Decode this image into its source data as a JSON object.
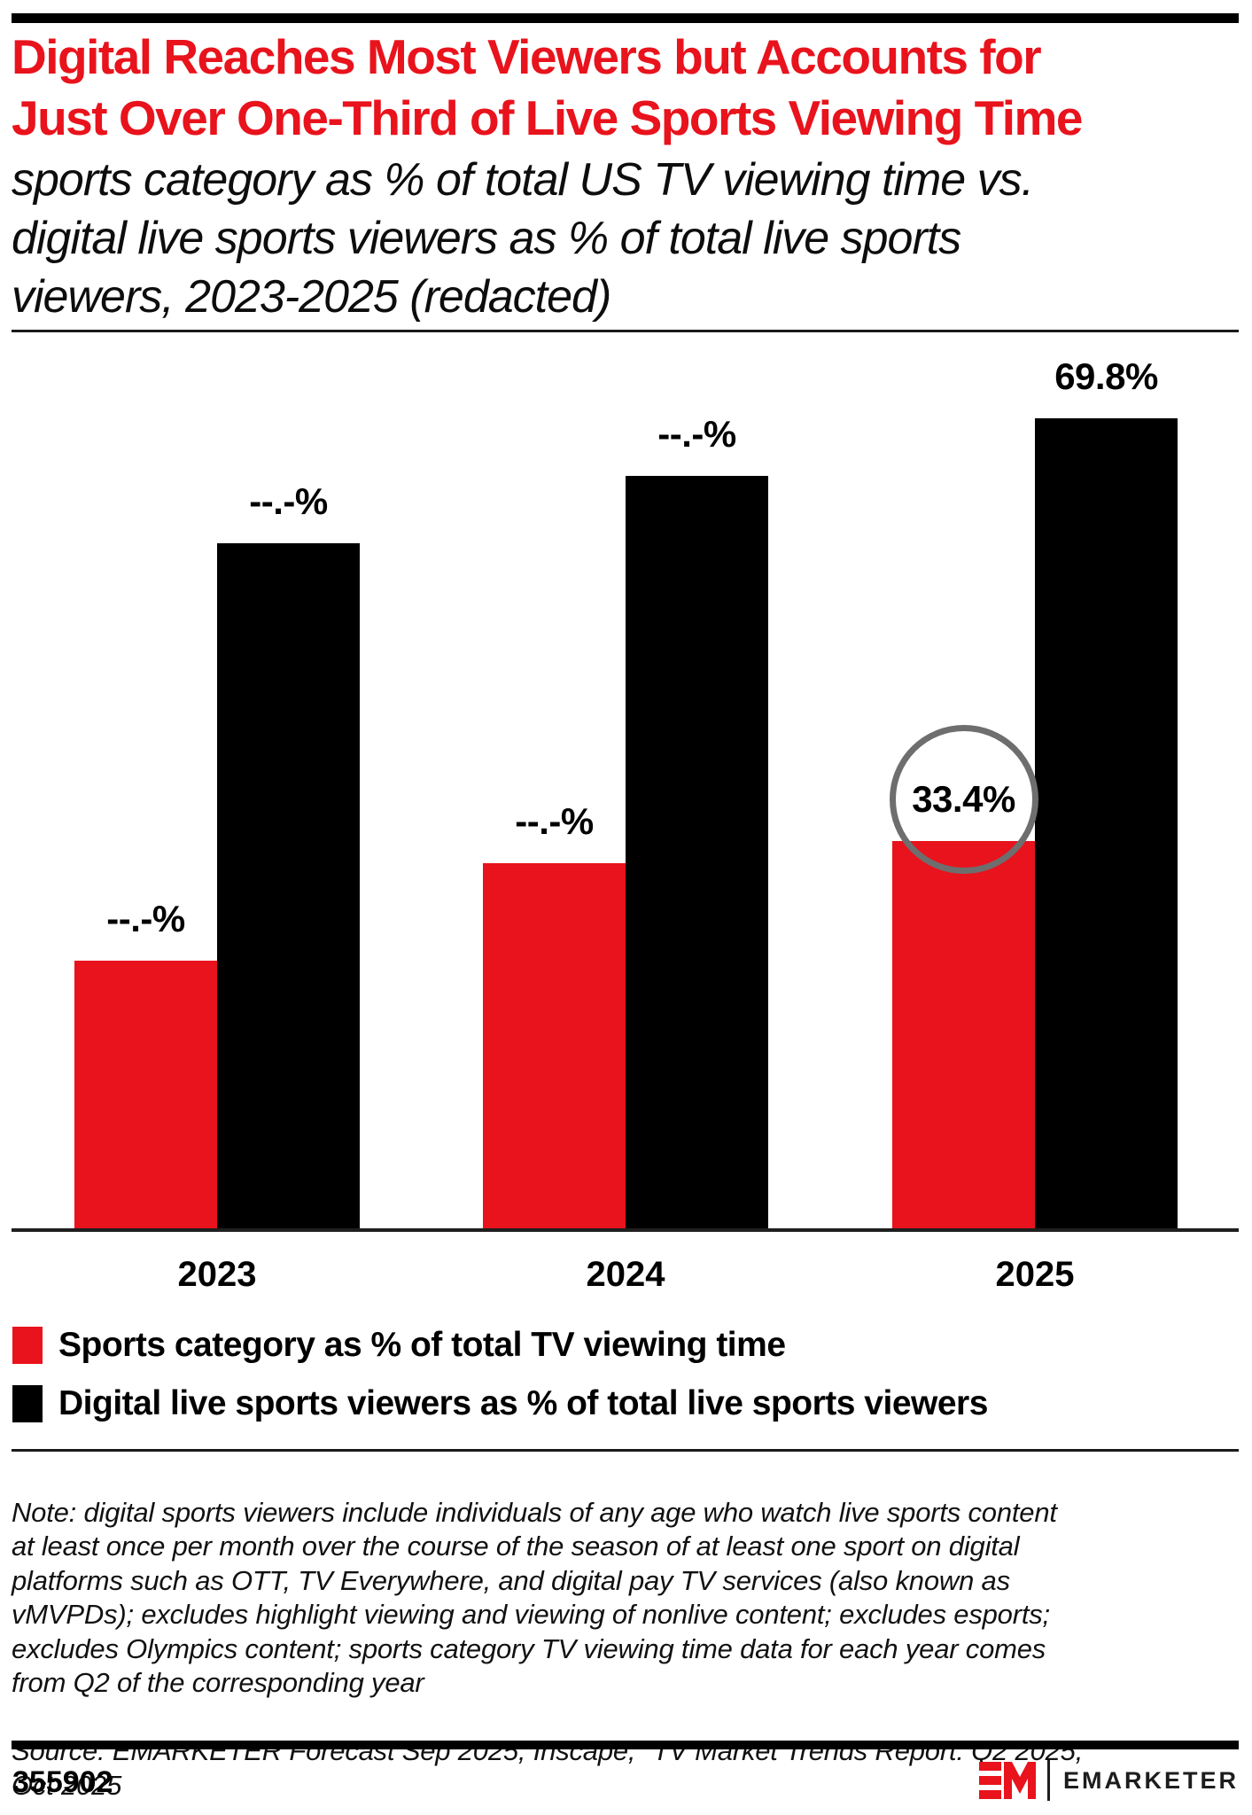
{
  "header": {
    "title": "Digital Reaches Most Viewers but Accounts for\nJust Over One-Third of Live Sports Viewing Time",
    "subtitle": "sports category as % of total US TV viewing time vs.\ndigital live sports viewers as % of total live sports\nviewers, 2023-2025 (redacted)"
  },
  "colors": {
    "brand_red": "#e8131c",
    "bar_black": "#000000",
    "circle_gray": "#6e6e6e",
    "rule_dark": "#1a1a1a"
  },
  "chart_data": {
    "type": "bar",
    "title": "Digital Reaches Most Viewers but Accounts for Just Over One-Third of Live Sports Viewing Time",
    "categories": [
      "2023",
      "2024",
      "2025"
    ],
    "series": [
      {
        "name": "Sports category as % of total TV viewing time",
        "color": "#e8131c",
        "values": [
          null,
          null,
          33.4
        ],
        "value_labels": [
          "--.-%",
          "--.-%",
          "33.4%"
        ],
        "estimated_values": [
          23.1,
          31.5,
          33.4
        ],
        "redacted": [
          true,
          true,
          false
        ]
      },
      {
        "name": "Digital live sports viewers as % of total live sports viewers",
        "color": "#000000",
        "values": [
          null,
          null,
          69.8
        ],
        "value_labels": [
          "--.-%",
          "--.-%",
          "69.8%"
        ],
        "estimated_values": [
          59.0,
          64.8,
          69.8
        ],
        "redacted": [
          true,
          true,
          false
        ]
      }
    ],
    "ylim": [
      0,
      75.6
    ],
    "grid": false,
    "y_axis_visible": false,
    "value_labels_shown": true,
    "legend_position": "bottom",
    "annotation": {
      "shape": "circle",
      "color": "#6e6e6e",
      "series_index": 0,
      "category_index": 2,
      "highlighted_label": "33.4%"
    }
  },
  "legend": {
    "items": [
      {
        "label": "Sports category as % of total TV viewing time"
      },
      {
        "label": "Digital live sports viewers as % of total live sports viewers"
      }
    ]
  },
  "footnote": {
    "note": "Note: digital sports viewers include individuals of any age who watch live sports content\nat least once per month over the course of the season of at least one sport on digital\nplatforms such as OTT, TV Everywhere, and digital pay TV services (also known as\nvMVPDs); excludes highlight viewing and viewing of nonlive content; excludes esports;\nexcludes Olympics content; sports category TV viewing time data for each year comes\nfrom Q2 of the corresponding year",
    "source": "Source: EMARKETER Forecast Sep 2025; Inscape, \"TV Market Trends Report: Q2 2025,\"\nOct 2025"
  },
  "footer": {
    "chart_id": "355902",
    "logo_text": "EMARKETER"
  }
}
